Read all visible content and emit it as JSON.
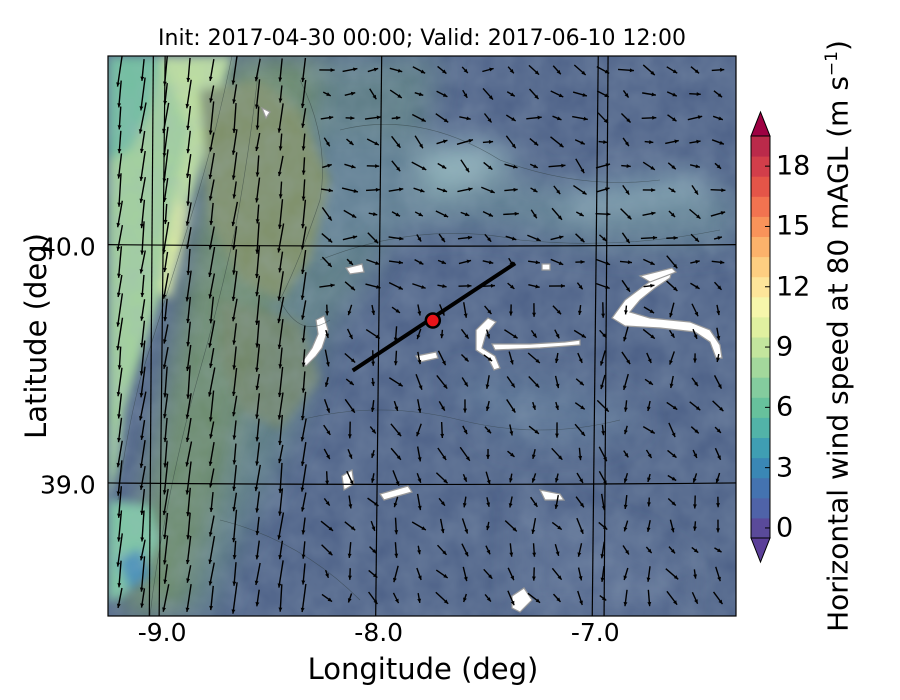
{
  "figure": {
    "title": "Init: 2017-04-30 00:00; Valid: 2017-06-10 12:00",
    "xlabel": "Longitude (deg)",
    "ylabel": "Latitude (deg)",
    "colorbar_label_main": "Horizontal wind speed at 80 mAGL (m s",
    "colorbar_label_exp": "−1",
    "colorbar_label_close": ")"
  },
  "chart_data": {
    "type": "heatmap",
    "title": "Init: 2017-04-30 00:00; Valid: 2017-06-10 12:00",
    "xlabel": "Longitude (deg)",
    "ylabel": "Latitude (deg)",
    "xlim": [
      -9.25,
      -6.35
    ],
    "ylim": [
      38.45,
      40.8
    ],
    "x_ticks": [
      -9.0,
      -8.0,
      -7.0
    ],
    "x_tick_labels": [
      "-9.0",
      "-8.0",
      "-7.0"
    ],
    "y_ticks": [
      39.0,
      40.0
    ],
    "y_tick_labels": [
      "39.0",
      "40.0"
    ],
    "grid": true,
    "colorbar": {
      "min": 0,
      "max": 20,
      "step": 1,
      "extend": "both",
      "ticks": [
        0,
        3,
        6,
        9,
        12,
        15,
        18
      ],
      "tick_labels": [
        "0",
        "3",
        "6",
        "9",
        "12",
        "15",
        "18"
      ],
      "colors": [
        "#5a4a9a",
        "#4f63a8",
        "#4473b0",
        "#3a87b5",
        "#3f9eb3",
        "#52b3a8",
        "#67c19c",
        "#84cc9e",
        "#a3d89c",
        "#c3e59d",
        "#e0f0a0",
        "#f6f6ab",
        "#fde59a",
        "#fdce81",
        "#fcb26b",
        "#f9935a",
        "#f27350",
        "#e45548",
        "#d23e4a",
        "#bb2a4a",
        "#9c1745"
      ],
      "under_color": "#5b3f99",
      "over_color": "#9e0142"
    },
    "overlays": {
      "transect_line": {
        "start": [
          -8.12,
          39.48
        ],
        "end": [
          -7.37,
          39.93
        ]
      },
      "site_marker": {
        "lon": -7.75,
        "lat": 39.69,
        "color": "#e8141a"
      }
    },
    "wind_vectors": "quiver field, stronger southward flow over western coast"
  }
}
